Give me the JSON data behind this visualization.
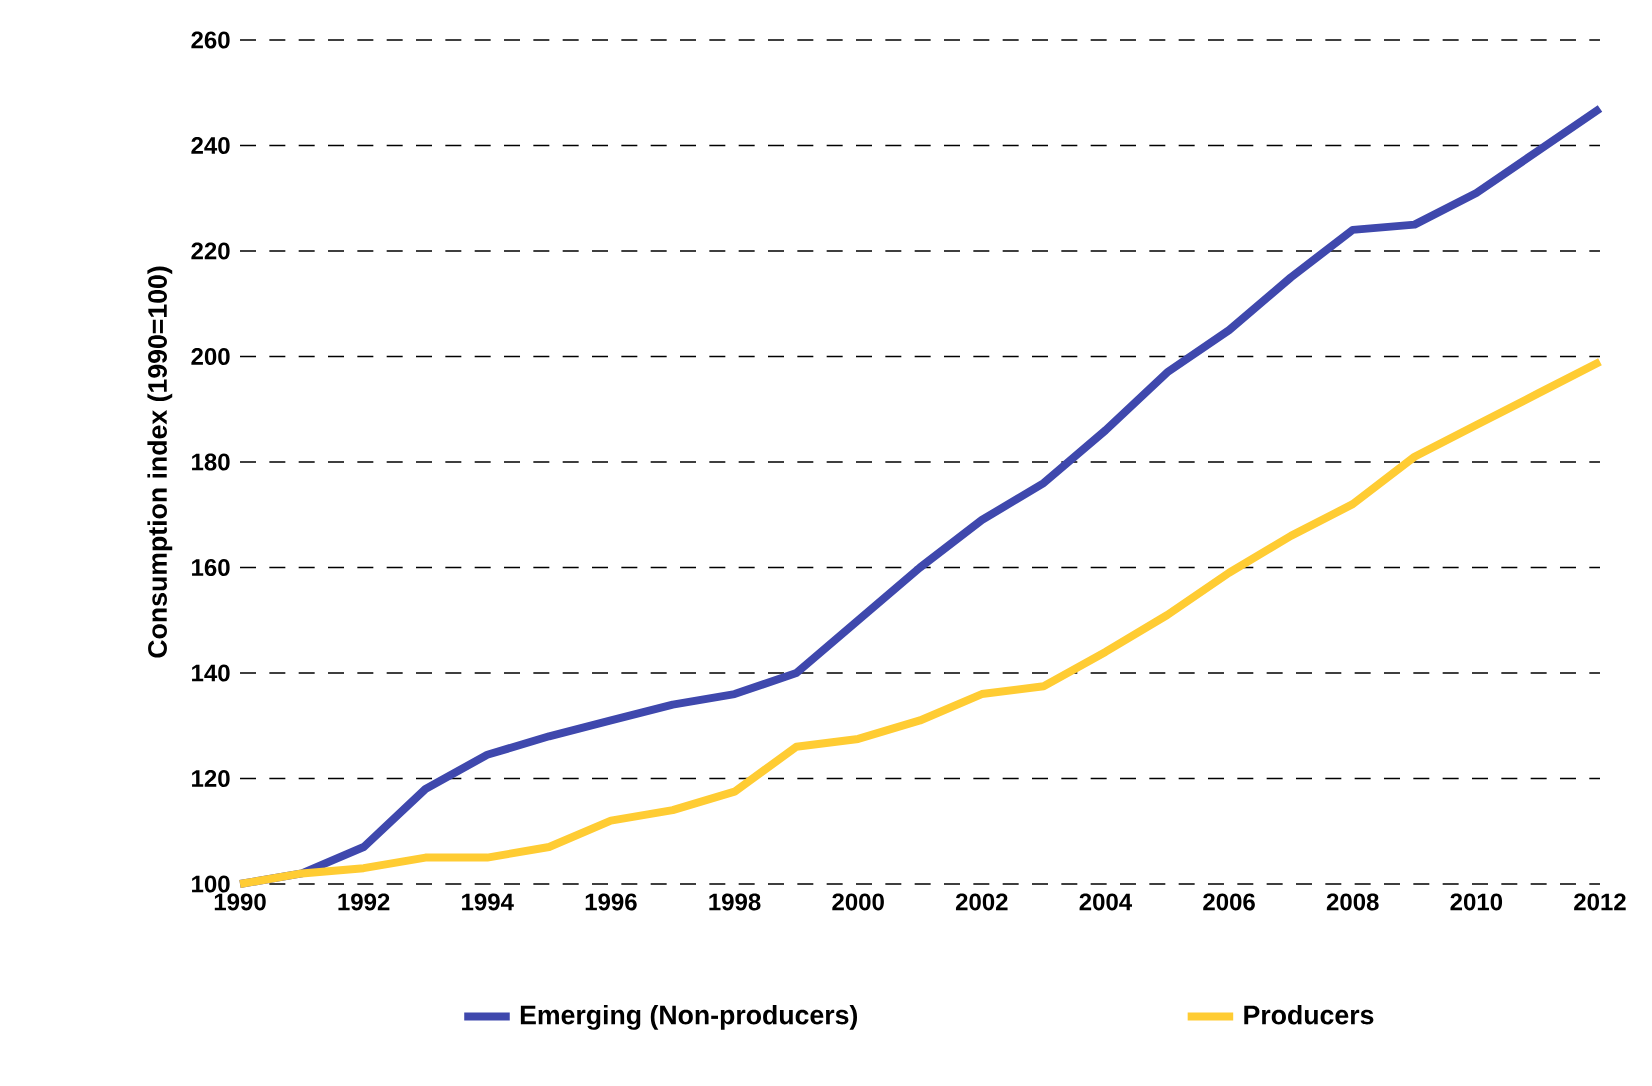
{
  "chart_data": {
    "type": "line",
    "ylabel": "Consumption index (1990=100)",
    "x": [
      1990,
      1991,
      1992,
      1993,
      1994,
      1995,
      1996,
      1997,
      1998,
      1999,
      2000,
      2001,
      2002,
      2003,
      2004,
      2005,
      2006,
      2007,
      2008,
      2009,
      2010,
      2011,
      2012
    ],
    "series": [
      {
        "name": "Emerging (Non-producers)",
        "color": "#3f48ad",
        "values": [
          100,
          102,
          107,
          118,
          124.5,
          128,
          131,
          134,
          136,
          140,
          150,
          160,
          169,
          176,
          186,
          197,
          205,
          215,
          224,
          225,
          231,
          239,
          247
        ]
      },
      {
        "name": "Producers",
        "color": "#ffcc33",
        "values": [
          100,
          102,
          103,
          105,
          105,
          107,
          112,
          114,
          117.5,
          126,
          127.5,
          131,
          136,
          137.5,
          144,
          151,
          159,
          166,
          172,
          181,
          187,
          193,
          199
        ]
      }
    ],
    "xlim": [
      1990,
      2012
    ],
    "xticks": [
      1990,
      1992,
      1994,
      1996,
      1998,
      2000,
      2002,
      2004,
      2006,
      2008,
      2010,
      2012
    ],
    "ylim": [
      100,
      260
    ],
    "yticks": [
      100,
      120,
      140,
      160,
      180,
      200,
      220,
      240,
      260
    ],
    "grid": "y",
    "legend": "bottom",
    "marker": "none",
    "line_style": "solid"
  }
}
